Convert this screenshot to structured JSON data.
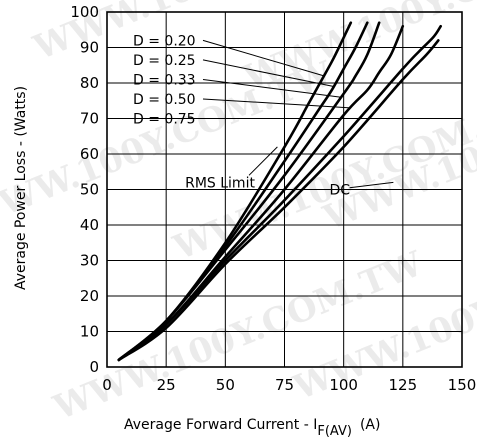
{
  "chart_data": {
    "type": "line",
    "title": "",
    "xlabel": "Average Forward Current - I",
    "xlabel_sub": "F(AV)",
    "xlabel_unit": "(A)",
    "ylabel": "Average Power Loss - (Watts)",
    "xlim": [
      0,
      150
    ],
    "ylim": [
      0,
      100
    ],
    "xticks": [
      0,
      25,
      50,
      75,
      100,
      125,
      150
    ],
    "yticks": [
      0,
      10,
      20,
      30,
      40,
      50,
      60,
      70,
      80,
      90,
      100
    ],
    "grid": true,
    "series": [
      {
        "name": "D = 0.20",
        "x": [
          5,
          25,
          50,
          75,
          85,
          90,
          95,
          98,
          103
        ],
        "y": [
          2,
          13,
          35,
          62,
          74,
          80,
          86,
          90,
          97
        ]
      },
      {
        "name": "D = 0.25",
        "x": [
          5,
          25,
          50,
          75,
          90,
          95,
          100,
          105,
          110
        ],
        "y": [
          2,
          13,
          34,
          58,
          73,
          78,
          84,
          90,
          97
        ]
      },
      {
        "name": "D = 0.33",
        "x": [
          5,
          25,
          50,
          75,
          100,
          105,
          110,
          115
        ],
        "y": [
          2,
          13,
          33,
          54,
          77,
          82,
          88,
          97
        ]
      },
      {
        "name": "D = 0.50",
        "x": [
          5,
          25,
          50,
          75,
          100,
          110,
          115,
          120,
          125
        ],
        "y": [
          2,
          12,
          31,
          50,
          71,
          78,
          83,
          88,
          96
        ]
      },
      {
        "name": "D = 0.75",
        "x": [
          5,
          25,
          50,
          75,
          100,
          125,
          132,
          138,
          141
        ],
        "y": [
          2,
          12,
          30,
          47,
          65,
          84,
          89,
          93,
          96
        ]
      },
      {
        "name": "DC",
        "x": [
          5,
          25,
          50,
          75,
          100,
          125,
          135,
          140
        ],
        "y": [
          2,
          11,
          29,
          45,
          62,
          81,
          88,
          92
        ]
      }
    ],
    "annotations": [
      "RMS Limit"
    ]
  },
  "watermark": "WWW.100Y.COM.TW"
}
